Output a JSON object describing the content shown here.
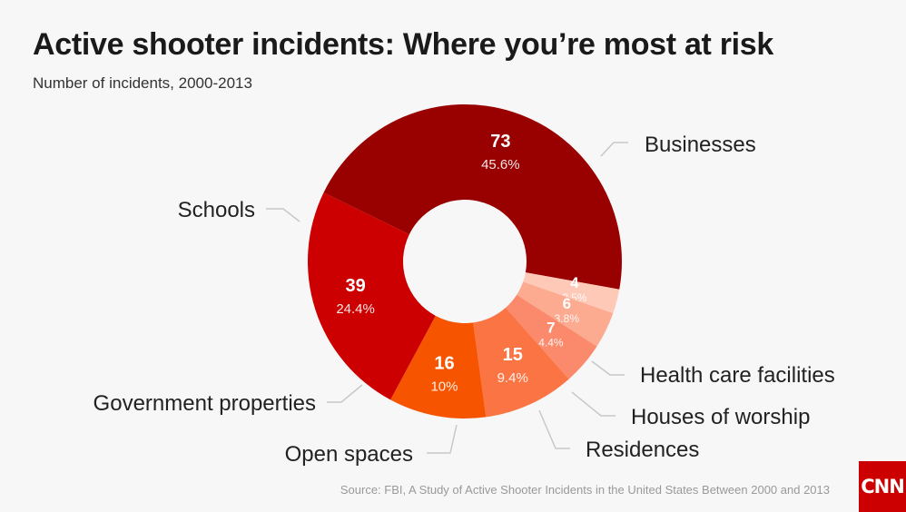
{
  "chart_data": {
    "type": "pie",
    "title": "Active shooter incidents: Where you’re most at risk",
    "subtitle": "Number of incidents, 2000-2013",
    "slices": [
      {
        "label": "Businesses",
        "value": 73,
        "percent": "45.6%",
        "color": "#990000"
      },
      {
        "label": "Health care facilities",
        "value": 4,
        "percent": "2.5%",
        "color": "#ffc9b8"
      },
      {
        "label": "Houses of worship",
        "value": 6,
        "percent": "3.8%",
        "color": "#fcaa90"
      },
      {
        "label": "Residences",
        "value": 7,
        "percent": "4.4%",
        "color": "#fb8a6c"
      },
      {
        "label": "Open spaces",
        "value": 15,
        "percent": "9.4%",
        "color": "#fb7443"
      },
      {
        "label": "Government properties",
        "value": 16,
        "percent": "10%",
        "color": "#f75400"
      },
      {
        "label": "Schools",
        "value": 39,
        "percent": "24.4%",
        "color": "#cc0000"
      }
    ],
    "legend": "none (callout labels)"
  },
  "source": "Source: FBI, A Study of Active Shooter Incidents in the United States Between 2000 and 2013",
  "brand": {
    "logo_text": "CNN",
    "logo_color": "#cc0000"
  }
}
